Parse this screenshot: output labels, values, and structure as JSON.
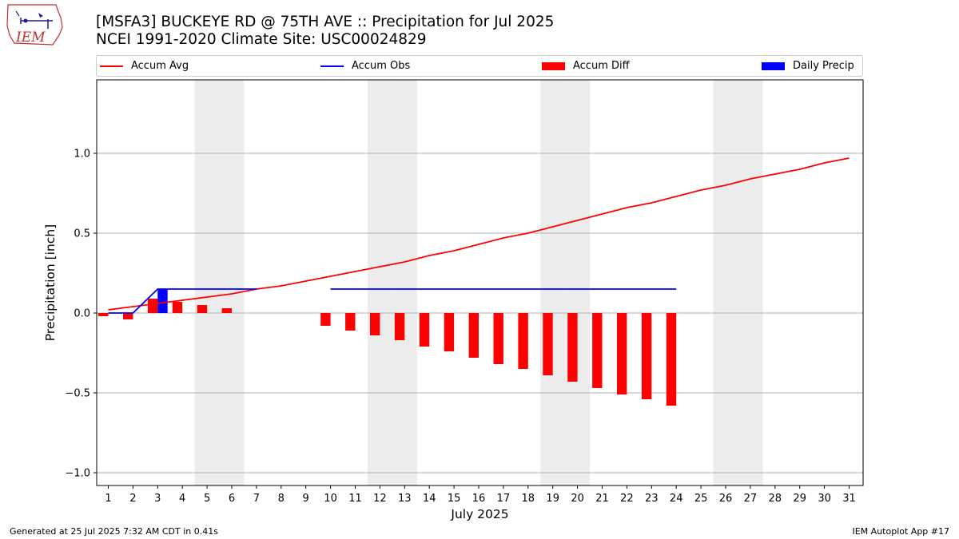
{
  "header": {
    "title_line1": "[MSFA3] BUCKEYE RD @ 75TH AVE :: Precipitation for Jul 2025",
    "title_line2": "NCEI 1991-2020 Climate Site: USC00024829"
  },
  "logo": {
    "text": "IEM",
    "icon": "iem-logo-icon"
  },
  "colors": {
    "avg": "#ff0000",
    "obs": "#0000ff",
    "diff": "#ff0000",
    "daily": "#0000ff",
    "weekend": "#ececec",
    "grid": "#b0b0b0"
  },
  "legend": [
    {
      "label": "Accum Avg",
      "kind": "line",
      "color": "#ff0000"
    },
    {
      "label": "Accum Obs",
      "kind": "line",
      "color": "#0000ff"
    },
    {
      "label": "Accum Diff",
      "kind": "bar",
      "color": "#ff0000"
    },
    {
      "label": "Daily Precip",
      "kind": "bar",
      "color": "#0000ff"
    }
  ],
  "chart_data": {
    "type": "bar",
    "title": "[MSFA3] BUCKEYE RD @ 75TH AVE :: Precipitation for Jul 2025",
    "subtitle": "NCEI 1991-2020 Climate Site: USC00024829",
    "xlabel": "July 2025",
    "ylabel": "Precipitation [inch]",
    "ylim": [
      -1.08,
      1.46
    ],
    "yticks": [
      -1.0,
      -0.5,
      0.0,
      0.5,
      1.0
    ],
    "ytick_labels": [
      "−1.0",
      "−0.5",
      "0.0",
      "0.5",
      "1.0"
    ],
    "xticks": [
      1,
      2,
      3,
      4,
      5,
      6,
      7,
      8,
      9,
      10,
      11,
      12,
      13,
      14,
      15,
      16,
      17,
      18,
      19,
      20,
      21,
      22,
      23,
      24,
      25,
      26,
      27,
      28,
      29,
      30,
      31
    ],
    "grid": "horizontal",
    "legend_position": "top",
    "weekend_days": [
      5,
      6,
      12,
      13,
      19,
      20,
      26,
      27
    ],
    "series": [
      {
        "name": "Accum Avg",
        "type": "line",
        "x": [
          1,
          2,
          3,
          4,
          5,
          6,
          7,
          8,
          9,
          10,
          11,
          12,
          13,
          14,
          15,
          16,
          17,
          18,
          19,
          20,
          21,
          22,
          23,
          24,
          25,
          26,
          27,
          28,
          29,
          30,
          31
        ],
        "values": [
          0.02,
          0.04,
          0.06,
          0.08,
          0.1,
          0.12,
          0.15,
          0.17,
          0.2,
          0.23,
          0.26,
          0.29,
          0.32,
          0.36,
          0.39,
          0.43,
          0.47,
          0.5,
          0.54,
          0.58,
          0.62,
          0.66,
          0.69,
          0.73,
          0.77,
          0.8,
          0.84,
          0.87,
          0.9,
          0.94,
          0.97
        ]
      },
      {
        "name": "Accum Obs",
        "type": "line",
        "segments": [
          {
            "x": [
              1,
              2,
              3,
              4,
              5,
              6,
              7
            ],
            "values": [
              0.0,
              0.0,
              0.15,
              0.15,
              0.15,
              0.15,
              0.15
            ]
          },
          {
            "x": [
              10,
              11,
              12,
              13,
              14,
              15,
              16,
              17,
              18,
              19,
              20,
              21,
              22,
              23,
              24
            ],
            "values": [
              0.15,
              0.15,
              0.15,
              0.15,
              0.15,
              0.15,
              0.15,
              0.15,
              0.15,
              0.15,
              0.15,
              0.15,
              0.15,
              0.15,
              0.15
            ]
          }
        ]
      },
      {
        "name": "Accum Diff",
        "type": "bar",
        "x": [
          1,
          2,
          3,
          4,
          5,
          6,
          10,
          11,
          12,
          13,
          14,
          15,
          16,
          17,
          18,
          19,
          20,
          21,
          22,
          23,
          24
        ],
        "values": [
          -0.02,
          -0.04,
          0.09,
          0.07,
          0.05,
          0.03,
          -0.08,
          -0.11,
          -0.14,
          -0.17,
          -0.21,
          -0.24,
          -0.28,
          -0.32,
          -0.35,
          -0.39,
          -0.43,
          -0.47,
          -0.51,
          -0.54,
          -0.58
        ]
      },
      {
        "name": "Daily Precip",
        "type": "bar",
        "x": [
          3
        ],
        "values": [
          0.15
        ]
      }
    ]
  },
  "footer": {
    "left": "Generated at 25 Jul 2025 7:32 AM CDT in 0.41s",
    "right": "IEM Autoplot App #17"
  }
}
